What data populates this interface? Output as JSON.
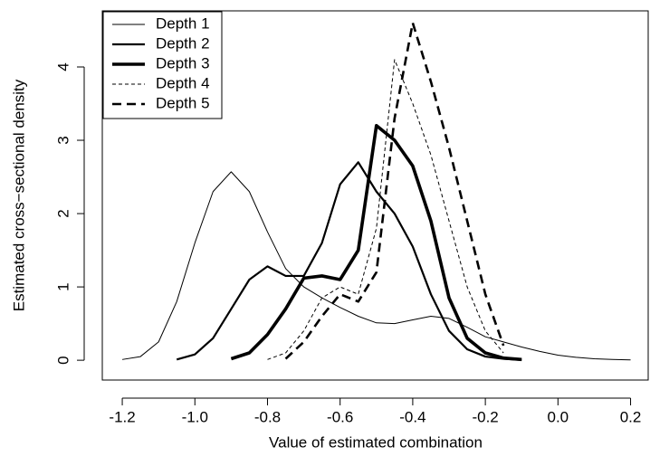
{
  "chart_data": {
    "type": "line",
    "xlabel": "Value of estimated combination",
    "ylabel": "Estimated cross−sectional density",
    "x": [
      -1.2,
      -1.15,
      -1.1,
      -1.05,
      -1.0,
      -0.95,
      -0.9,
      -0.85,
      -0.8,
      -0.75,
      -0.7,
      -0.65,
      -0.6,
      -0.55,
      -0.5,
      -0.45,
      -0.4,
      -0.35,
      -0.3,
      -0.25,
      -0.2,
      -0.15,
      -0.1,
      -0.05,
      0.0,
      0.05,
      0.1,
      0.15,
      0.2
    ],
    "series": [
      {
        "name": "Depth 1",
        "color": "#000000",
        "line_width": 1,
        "dash": "solid",
        "values": [
          0.01,
          0.05,
          0.25,
          0.8,
          1.6,
          2.3,
          2.57,
          2.3,
          1.75,
          1.25,
          1.0,
          0.85,
          0.72,
          0.6,
          0.51,
          0.5,
          0.55,
          0.6,
          0.57,
          0.45,
          0.32,
          0.25,
          0.18,
          0.12,
          0.07,
          0.04,
          0.02,
          0.01,
          0.005
        ]
      },
      {
        "name": "Depth 2",
        "color": "#000000",
        "line_width": 2.2,
        "dash": "solid",
        "values": [
          null,
          null,
          null,
          0.01,
          0.08,
          0.3,
          0.7,
          1.1,
          1.28,
          1.15,
          1.15,
          1.6,
          2.4,
          2.7,
          2.3,
          2.0,
          1.55,
          0.9,
          0.4,
          0.15,
          0.05,
          0.02,
          0.005,
          null,
          null,
          null,
          null,
          null,
          null
        ]
      },
      {
        "name": "Depth 3",
        "color": "#000000",
        "line_width": 3.6,
        "dash": "solid",
        "values": [
          null,
          null,
          null,
          null,
          null,
          null,
          0.02,
          0.1,
          0.35,
          0.7,
          1.12,
          1.15,
          1.1,
          1.5,
          3.2,
          3.0,
          2.65,
          1.9,
          0.85,
          0.3,
          0.1,
          0.03,
          0.01,
          null,
          null,
          null,
          null,
          null,
          null
        ]
      },
      {
        "name": "Depth 4",
        "color": "#000000",
        "line_width": 1,
        "dash": "dashed",
        "values": [
          null,
          null,
          null,
          null,
          null,
          null,
          null,
          null,
          0.01,
          0.1,
          0.4,
          0.85,
          1.0,
          0.9,
          1.8,
          4.1,
          3.5,
          2.8,
          1.9,
          1.0,
          0.4,
          0.1,
          null,
          null,
          null,
          null,
          null,
          null,
          null
        ]
      },
      {
        "name": "Depth 5",
        "color": "#000000",
        "line_width": 2.6,
        "dash": "dashed",
        "values": [
          null,
          null,
          null,
          null,
          null,
          null,
          null,
          null,
          null,
          0.02,
          0.25,
          0.6,
          0.9,
          0.8,
          1.2,
          3.3,
          4.6,
          3.8,
          2.9,
          1.9,
          0.9,
          0.2,
          null,
          null,
          null,
          null,
          null,
          null,
          null
        ]
      }
    ],
    "xlim": [
      -1.255,
      0.251
    ],
    "ylim": [
      -0.27,
      4.765
    ],
    "xticks": [
      -1.2,
      {
        "value": -1.0,
        "label": "-1.0"
      },
      -0.8,
      -0.6,
      -0.4,
      -0.2,
      {
        "value": 0.0,
        "label": "0.0"
      },
      0.2
    ],
    "yticks": [
      0,
      1,
      2,
      3,
      4
    ],
    "legend": "top-left"
  }
}
